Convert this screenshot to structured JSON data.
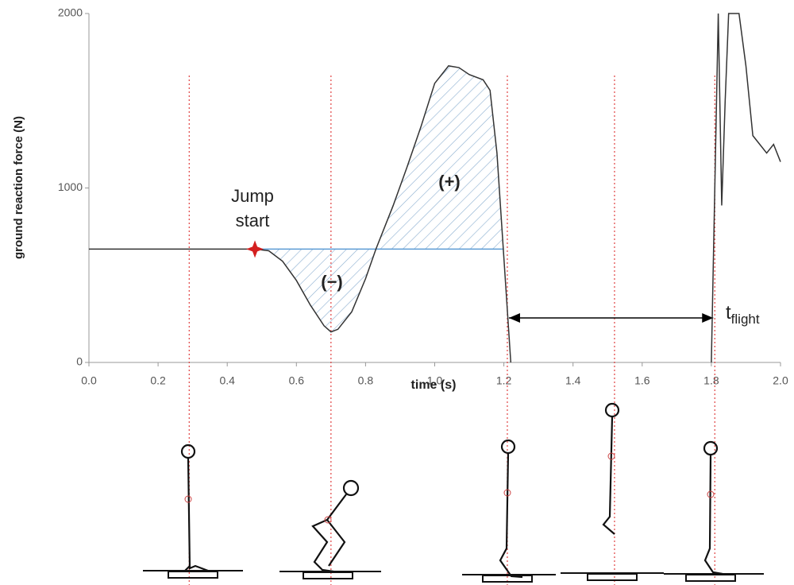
{
  "chart_data": {
    "type": "line",
    "x_label": "time (s)",
    "y_label": "ground reaction force (N)",
    "x": [
      0,
      0.1,
      0.2,
      0.3,
      0.4,
      0.48,
      0.52,
      0.56,
      0.6,
      0.64,
      0.68,
      0.7,
      0.72,
      0.76,
      0.8,
      0.83,
      0.88,
      0.92,
      0.96,
      1.0,
      1.04,
      1.07,
      1.1,
      1.14,
      1.16,
      1.18,
      1.2,
      1.22,
      1.5,
      1.8,
      1.81,
      1.82,
      1.83,
      1.84,
      1.85,
      1.86,
      1.88,
      1.9,
      1.92,
      1.94,
      1.96,
      1.98,
      2.0
    ],
    "series": [
      {
        "color": "#333333",
        "values": [
          650,
          650,
          650,
          650,
          650,
          650,
          640,
          580,
          470,
          330,
          210,
          175,
          190,
          290,
          480,
          650,
          900,
          1120,
          1350,
          1600,
          1700,
          1690,
          1650,
          1620,
          1560,
          1200,
          600,
          0,
          null,
          0,
          1000,
          2000,
          900,
          1500,
          2000,
          2000,
          2000,
          1700,
          1300,
          1250,
          1200,
          1250,
          1150
        ]
      }
    ],
    "baseline": 650,
    "baseline_color": "#5b9bd5",
    "jump_start_x": 0.48,
    "event_lines": [
      0.29,
      0.7,
      1.21,
      1.52,
      1.81
    ],
    "event_color": "#e04040",
    "xlim": [
      0,
      2
    ],
    "ylim": [
      0,
      2000
    ],
    "xticks": [
      {
        "value": 0,
        "label": "0.0"
      },
      0.2,
      0.4,
      0.6,
      0.8,
      {
        "value": 1,
        "label": "1.0"
      },
      1.2,
      1.4,
      1.6,
      1.8,
      {
        "value": 2,
        "label": "2.0"
      }
    ],
    "yticks": [
      0,
      1000,
      2000
    ],
    "annotations": {
      "jump": "Jump",
      "start": "start",
      "positive": "(+)",
      "negative": "(−)",
      "t": "t",
      "flight": "flight"
    }
  }
}
